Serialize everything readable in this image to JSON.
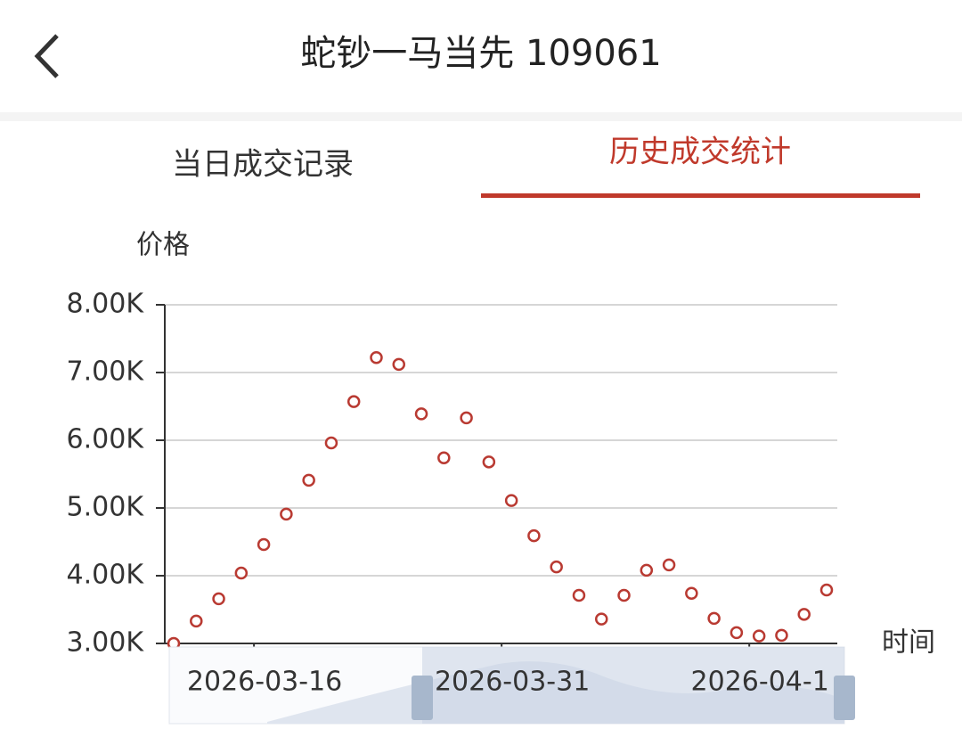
{
  "header": {
    "title": "蛇钞一马当先 109061"
  },
  "tabs": [
    "当日成交记录",
    "历史成交统计"
  ],
  "chart_data": {
    "type": "line",
    "y_axis_label": "价格",
    "x_axis_label": "时间",
    "categories": [
      null,
      null,
      null,
      null,
      "2026-03-16",
      null,
      null,
      null,
      null,
      null,
      null,
      null,
      null,
      null,
      null,
      "2026-03-31",
      null,
      null,
      null,
      null,
      null,
      null,
      null,
      null,
      null,
      null,
      "2026-04-1",
      null,
      null,
      null
    ],
    "series": [
      {
        "name": "价格",
        "color": "#b93a32",
        "values": [
          3000,
          3330,
          3660,
          4040,
          4460,
          4910,
          5410,
          5960,
          6570,
          7220,
          7120,
          6390,
          5740,
          6330,
          5680,
          5110,
          4590,
          4130,
          3710,
          3360,
          3710,
          4080,
          4160,
          3740,
          3370,
          3160,
          3110,
          3120,
          3430,
          3790
        ]
      }
    ],
    "ylim": [
      3000,
      8000
    ],
    "yticks": [
      {
        "value": 3000,
        "label": "3.00K"
      },
      {
        "value": 4000,
        "label": "4.00K"
      },
      {
        "value": 5000,
        "label": "5.00K"
      },
      {
        "value": 6000,
        "label": "6.00K"
      },
      {
        "value": 7000,
        "label": "7.00K"
      },
      {
        "value": 8000,
        "label": "8.00K"
      }
    ],
    "grid": true
  }
}
